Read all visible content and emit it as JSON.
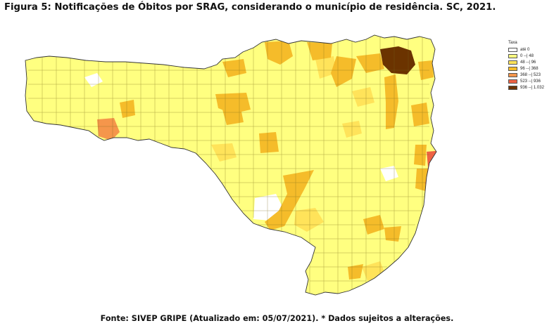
{
  "title": "Figura 5: Notificações de Óbitos por SRAG, considerando o município de residência. SC, 2021.",
  "source": "Fonte: SIVEP GRIPE (Atualizado em: 05/07/2021). * Dados sujeitos a alterações.",
  "legend": {
    "title": "Taxa",
    "classes": [
      {
        "label": "até 0",
        "color": "#ffffff"
      },
      {
        "label": "0 --| 48",
        "color": "#ffff80"
      },
      {
        "label": "48 --| 96",
        "color": "#ffe35a"
      },
      {
        "label": "96 --| 368",
        "color": "#f5bc2a"
      },
      {
        "label": "368 --| 523",
        "color": "#f5964b"
      },
      {
        "label": "523 --| 936",
        "color": "#ee6244"
      },
      {
        "label": "936 --| 1.032",
        "color": "#6b3300"
      }
    ]
  }
}
